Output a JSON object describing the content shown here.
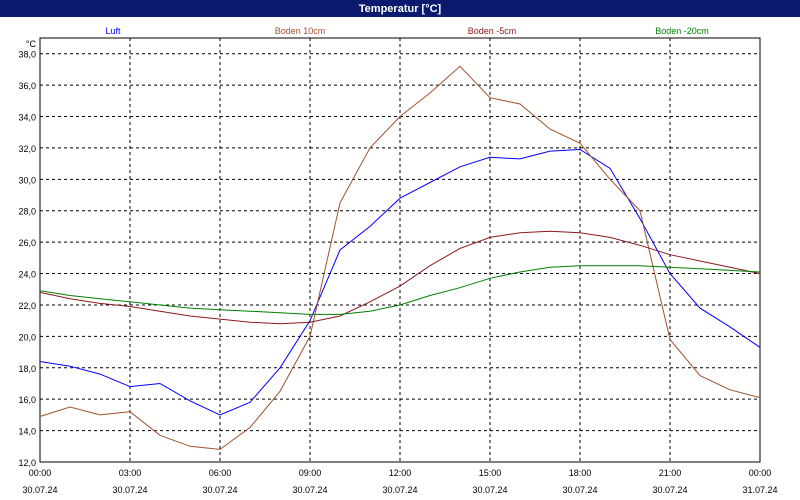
{
  "window": {
    "title": "Temperatur [°C]"
  },
  "chart_data": {
    "type": "line",
    "y_unit": "°C",
    "ylim": [
      12.0,
      39.0
    ],
    "y_ticks": [
      "12,0",
      "14,0",
      "16,0",
      "18,0",
      "20,0",
      "22,0",
      "24,0",
      "26,0",
      "28,0",
      "30,0",
      "32,0",
      "34,0",
      "36,0",
      "38,0"
    ],
    "x_ticks": [
      {
        "time": "00:00",
        "date": "30.07.24"
      },
      {
        "time": "03:00",
        "date": "30.07.24"
      },
      {
        "time": "06:00",
        "date": "30.07.24"
      },
      {
        "time": "09:00",
        "date": "30.07.24"
      },
      {
        "time": "12:00",
        "date": "30.07.24"
      },
      {
        "time": "15:00",
        "date": "30.07.24"
      },
      {
        "time": "18:00",
        "date": "30.07.24"
      },
      {
        "time": "21:00",
        "date": "30.07.24"
      },
      {
        "time": "00:00",
        "date": "31.07.24"
      }
    ],
    "grid": true,
    "legend_position": "top",
    "x_hours": [
      0,
      1,
      2,
      3,
      4,
      5,
      6,
      7,
      8,
      9,
      10,
      11,
      12,
      13,
      14,
      15,
      16,
      17,
      18,
      19,
      20,
      21,
      22,
      23,
      24
    ],
    "series": [
      {
        "name": "Luft",
        "color": "#0000ff",
        "values": [
          18.4,
          18.1,
          17.6,
          16.8,
          17.0,
          15.9,
          15.0,
          15.8,
          18.0,
          21.0,
          25.5,
          27.0,
          28.8,
          29.8,
          30.8,
          31.4,
          31.3,
          31.8,
          31.9,
          30.7,
          27.5,
          24.0,
          21.8,
          20.6,
          19.3
        ]
      },
      {
        "name": "Boden 10cm",
        "color": "#a0522d",
        "values": [
          14.9,
          15.5,
          15.0,
          15.2,
          13.7,
          13.0,
          12.8,
          14.2,
          16.5,
          20.0,
          28.5,
          32.0,
          34.0,
          35.5,
          37.2,
          35.2,
          34.8,
          33.2,
          32.3,
          30.0,
          28.0,
          19.8,
          17.5,
          16.6,
          16.1
        ]
      },
      {
        "name": "Boden -5cm",
        "color": "#8b1a1a",
        "values": [
          22.8,
          22.4,
          22.1,
          21.9,
          21.6,
          21.3,
          21.1,
          20.9,
          20.8,
          20.9,
          21.3,
          22.2,
          23.2,
          24.5,
          25.6,
          26.3,
          26.6,
          26.7,
          26.6,
          26.3,
          25.8,
          25.2,
          24.8,
          24.4,
          24.0
        ]
      },
      {
        "name": "Boden -20cm",
        "color": "#008000",
        "values": [
          22.9,
          22.6,
          22.4,
          22.2,
          22.0,
          21.8,
          21.7,
          21.6,
          21.5,
          21.4,
          21.4,
          21.6,
          22.0,
          22.6,
          23.1,
          23.7,
          24.1,
          24.4,
          24.5,
          24.5,
          24.5,
          24.4,
          24.3,
          24.2,
          24.1
        ]
      }
    ]
  }
}
